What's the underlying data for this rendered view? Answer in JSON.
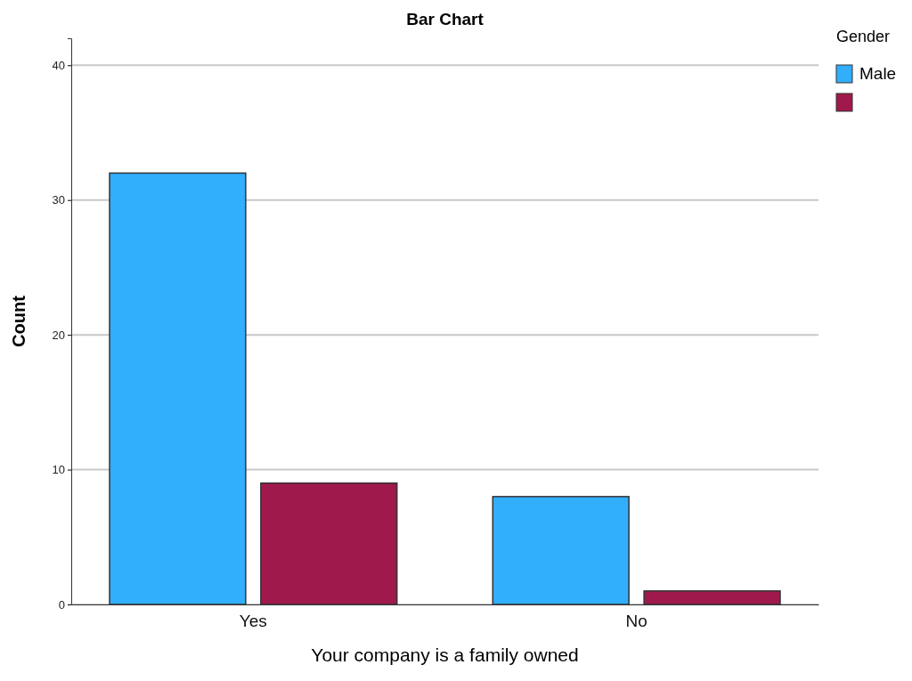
{
  "chart_data": {
    "type": "bar",
    "title": "Bar Chart",
    "xlabel": "Your company is a family owned",
    "ylabel": "Count",
    "legend_title": "Gender",
    "categories": [
      "Yes",
      "No"
    ],
    "series": [
      {
        "name": "Male",
        "color": "#31aefc",
        "values": [
          32,
          8
        ]
      },
      {
        "color": "#a0194c",
        "values": [
          9,
          1
        ]
      }
    ],
    "ylim": [
      0,
      42
    ],
    "yticks": [
      0,
      10,
      20,
      30,
      40
    ],
    "grid": "y",
    "legend": "top right"
  }
}
